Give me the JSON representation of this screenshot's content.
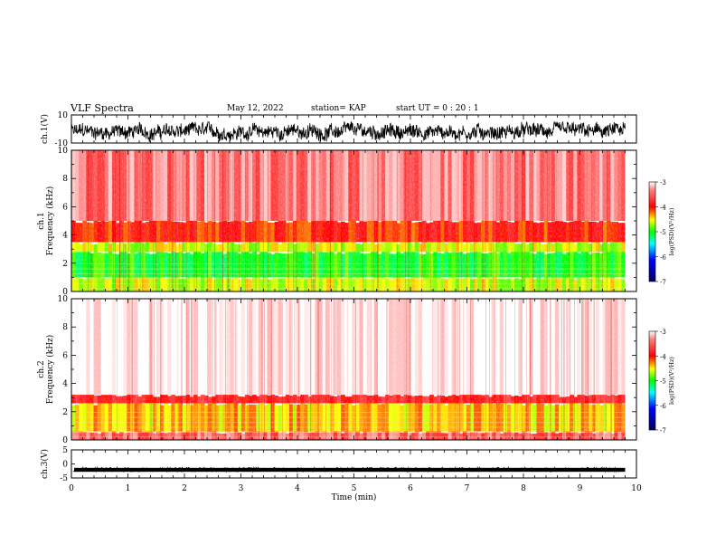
{
  "header": {
    "title": "VLF Spectra",
    "date": "May 12, 2022",
    "station": "station= KAP",
    "start_ut": "start  UT =   0  : 20 : 1"
  },
  "colors": {
    "scale": [
      "#ffffff",
      "#ff0000",
      "#ffff00",
      "#00ff00",
      "#00ffff",
      "#0000ff",
      "#000080"
    ]
  },
  "chart_data": [
    {
      "type": "line",
      "name": "ch1-waveform",
      "ylabel": "ch.1(V)",
      "ylim": [
        -10,
        10
      ],
      "yticks": [
        "10",
        "-10"
      ],
      "xlim": [
        0,
        10
      ],
      "signal": {
        "mean": -2,
        "amplitude_range": [
          -9,
          5
        ]
      }
    },
    {
      "type": "heatmap",
      "name": "ch1-spectrogram",
      "ylabel": "ch.1\nFrequency (kHz)",
      "ylabel_line1": "ch.1",
      "ylabel_line2": "Frequency  (kHz)",
      "ylim": [
        0,
        10
      ],
      "yticks": [
        "0",
        "2",
        "4",
        "6",
        "8",
        "10"
      ],
      "xlim": [
        0,
        10
      ],
      "bands": [
        {
          "from_khz": 0,
          "to_khz": 1,
          "log_psd": -4.6
        },
        {
          "from_khz": 1,
          "to_khz": 2.8,
          "log_psd": -5.0
        },
        {
          "from_khz": 2.8,
          "to_khz": 3.5,
          "log_psd": -4.6
        },
        {
          "from_khz": 3.5,
          "to_khz": 5,
          "log_psd": -4.0
        },
        {
          "from_khz": 5,
          "to_khz": 10,
          "log_psd": -3.4
        }
      ],
      "colorbar": {
        "label": "log(PSD)(V²/Hz)",
        "ticks": [
          "-3",
          "-4",
          "-5",
          "-6",
          "-7"
        ],
        "range": [
          -7,
          -3
        ]
      }
    },
    {
      "type": "heatmap",
      "name": "ch2-spectrogram",
      "ylabel_line1": "ch.2",
      "ylabel_line2": "Frequency  (kHz)",
      "ylim": [
        0,
        10
      ],
      "yticks": [
        "0",
        "2",
        "4",
        "6",
        "8",
        "10"
      ],
      "xlim": [
        0,
        10
      ],
      "bands": [
        {
          "from_khz": 0,
          "to_khz": 0.6,
          "log_psd": -3.5
        },
        {
          "from_khz": 0.6,
          "to_khz": 2.6,
          "log_psd": -4.4
        },
        {
          "from_khz": 2.6,
          "to_khz": 3.2,
          "log_psd": -3.8
        },
        {
          "from_khz": 3.2,
          "to_khz": 10,
          "log_psd": -3.0
        }
      ],
      "colorbar": {
        "label": "log(PSD)(V²/Hz)",
        "ticks": [
          "-3",
          "-4",
          "-5",
          "-6",
          "-7"
        ],
        "range": [
          -7,
          -3
        ]
      }
    },
    {
      "type": "line",
      "name": "ch3-waveform",
      "ylabel": "ch.3(V)",
      "ylim": [
        -5,
        5
      ],
      "yticks": [
        "5",
        "0",
        "-5"
      ],
      "xlim": [
        0,
        10
      ],
      "signal": {
        "mean": -2,
        "amplitude_range": [
          -2.8,
          -1.4
        ]
      }
    }
  ],
  "x_axis": {
    "label": "Time  (min)",
    "ticks": [
      "0",
      "1",
      "2",
      "3",
      "4",
      "5",
      "6",
      "7",
      "8",
      "9",
      "10"
    ],
    "range": [
      0,
      10
    ]
  }
}
